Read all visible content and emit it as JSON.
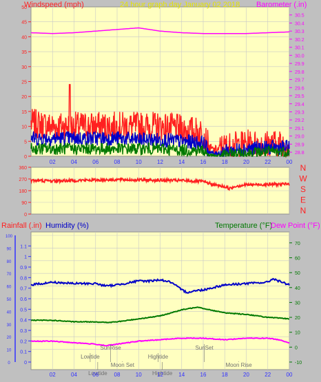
{
  "colors": {
    "page_bg": "#c0c0c0",
    "plot_bg": "#ffffc0",
    "grid": "#c8c8c8",
    "title": "#e4e400",
    "wind_axis": "#ff2020",
    "baro_axis": "#ff00ff",
    "time_axis": "#3030ff",
    "direction_axis": "#ff2020",
    "rain": "#ff2020",
    "humidity": "#0000c8",
    "temperature": "#007800",
    "dewpoint": "#ff00ff",
    "event_text": "#707070"
  },
  "chart_data": [
    {
      "type": "line",
      "title": "24 hour graph day   January 02 2018",
      "ylabel_left": "Windspeed (mph)",
      "ylabel_right": "Barometer (.in)",
      "x_ticks": [
        "02",
        "04",
        "06",
        "08",
        "10",
        "12",
        "14",
        "16",
        "18",
        "20",
        "22",
        "00"
      ],
      "x_range": [
        0,
        24
      ],
      "ylim_left": [
        0,
        50
      ],
      "y_ticks_left": [
        0,
        5,
        10,
        15,
        20,
        25,
        30,
        35,
        40,
        45,
        50
      ],
      "ylim_right": [
        28.75,
        30.6
      ],
      "y_ticks_right": [
        28.8,
        28.9,
        29.0,
        29.1,
        29.2,
        29.3,
        29.4,
        29.5,
        29.6,
        29.7,
        29.8,
        29.9,
        30.0,
        30.1,
        30.2,
        30.3,
        30.4,
        30.5
      ],
      "series": [
        {
          "role": "barometer",
          "axis": "right",
          "x": [
            0,
            2,
            4,
            6,
            8,
            10,
            11,
            12,
            13,
            14,
            16,
            18,
            20,
            22,
            24
          ],
          "y": [
            30.28,
            30.27,
            30.28,
            30.3,
            30.32,
            30.34,
            30.32,
            30.3,
            30.29,
            30.28,
            30.27,
            30.27,
            30.27,
            30.28,
            30.29
          ]
        },
        {
          "role": "gust",
          "axis": "left",
          "x": [
            0,
            2,
            4,
            6,
            8,
            10,
            12,
            14,
            16,
            16.5,
            17,
            18,
            20,
            22,
            24
          ],
          "y": [
            11,
            10,
            10,
            10,
            10,
            10,
            10,
            9,
            8,
            3,
            2,
            3,
            4,
            4,
            4
          ],
          "spread": 5,
          "peak": 24,
          "peak_x": 3.6
        },
        {
          "role": "wind_avg",
          "axis": "left",
          "x": [
            0,
            2,
            4,
            6,
            8,
            10,
            12,
            14,
            16,
            16.5,
            17,
            18,
            20,
            22,
            24
          ],
          "y": [
            6,
            6,
            6,
            6,
            6,
            5.5,
            5.5,
            5,
            4.5,
            1.8,
            0.8,
            1.5,
            2.5,
            2.8,
            3
          ],
          "spread": 2.5
        },
        {
          "role": "wind_min",
          "axis": "left",
          "x": [
            0,
            2,
            4,
            6,
            8,
            10,
            12,
            14,
            16,
            16.5,
            17,
            18,
            20,
            22,
            24
          ],
          "y": [
            2.5,
            2.5,
            2.5,
            2.5,
            2.5,
            2.5,
            2.5,
            2,
            2,
            0.5,
            0,
            0.5,
            1,
            1.5,
            1.5
          ],
          "spread": 2
        }
      ]
    },
    {
      "type": "line",
      "direction_labels": [
        "N",
        "W",
        "S",
        "E",
        "N"
      ],
      "x_ticks": [
        "02",
        "04",
        "06",
        "08",
        "10",
        "12",
        "14",
        "16",
        "18",
        "20",
        "22",
        "00"
      ],
      "x_range": [
        0,
        24
      ],
      "ylim": [
        0,
        360
      ],
      "y_ticks": [
        0,
        90,
        180,
        270,
        360
      ],
      "series": [
        {
          "role": "direction",
          "x": [
            0,
            2,
            4,
            6,
            8,
            10,
            12,
            14,
            16,
            17,
            18,
            18.5,
            19,
            20,
            22,
            24
          ],
          "y": [
            258,
            255,
            258,
            262,
            265,
            262,
            260,
            258,
            250,
            225,
            210,
            195,
            215,
            225,
            228,
            230
          ],
          "spread": 14
        }
      ]
    },
    {
      "type": "line",
      "ylabel_rain": "Rainfall (.in)",
      "ylabel_humidity": "Humidity (%)",
      "ylabel_temperature": "Temperature (°F)",
      "ylabel_dewpoint": "Dew Point (°F)",
      "x_ticks": [
        "02",
        "04",
        "06",
        "08",
        "10",
        "12",
        "14",
        "16",
        "18",
        "20",
        "22",
        "00"
      ],
      "x_range": [
        0,
        24
      ],
      "ylim_humidity": [
        0,
        100
      ],
      "y_ticks_humidity": [
        0,
        10,
        20,
        30,
        40,
        50,
        60,
        70,
        80,
        90,
        100
      ],
      "ylim_rain": [
        0,
        1.2
      ],
      "y_ticks_rain": [
        0,
        0.1,
        0.2,
        0.3,
        0.4,
        0.5,
        0.6,
        0.7,
        0.8,
        0.9,
        1,
        1.1
      ],
      "ylim_temperature": [
        -10,
        75
      ],
      "y_ticks_temperature": [
        -10,
        0,
        10,
        20,
        30,
        40,
        50,
        60,
        70
      ],
      "series": [
        {
          "role": "humidity",
          "axis": "humidity",
          "x": [
            0,
            2,
            4,
            6,
            7,
            8,
            10,
            11,
            12,
            13,
            14,
            14.5,
            15,
            16,
            18,
            20,
            22,
            22.5,
            23,
            24
          ],
          "y": [
            61,
            63,
            62,
            62,
            60,
            61,
            64,
            64,
            65,
            63,
            57,
            55,
            56,
            57,
            61,
            62,
            63,
            66,
            64,
            61
          ]
        },
        {
          "role": "temperature",
          "axis": "temperature",
          "x": [
            0,
            2,
            4,
            6,
            7,
            8,
            10,
            12,
            14,
            15.5,
            16,
            18,
            20,
            22,
            24
          ],
          "y": [
            18,
            18,
            17,
            17,
            16.5,
            17,
            19,
            21,
            25,
            27,
            26,
            23,
            22,
            20,
            19
          ]
        },
        {
          "role": "dewpoint",
          "axis": "temperature",
          "x": [
            0,
            2,
            4,
            6,
            7,
            8,
            10,
            12,
            14,
            16,
            18,
            20,
            22,
            23,
            24
          ],
          "y": [
            4,
            4,
            3,
            2,
            1,
            2,
            4,
            5,
            6,
            6,
            5,
            6,
            6,
            5,
            3
          ]
        }
      ],
      "events": [
        {
          "label": "SunRise",
          "x": 7.4,
          "row": 0
        },
        {
          "label": "SunSet",
          "x": 16.1,
          "row": 0
        },
        {
          "label": "Lowtide",
          "x": 5.5,
          "row": 1
        },
        {
          "label": "Hightide",
          "x": 11.8,
          "row": 1
        },
        {
          "label": "Moon Set",
          "x": 8.5,
          "row": 2
        },
        {
          "label": "Moon Rise",
          "x": 19.3,
          "row": 2
        },
        {
          "label": "Lowtide",
          "x": 6.2,
          "row": 3
        },
        {
          "label": "Hightide",
          "x": 12.2,
          "row": 3
        }
      ]
    }
  ]
}
